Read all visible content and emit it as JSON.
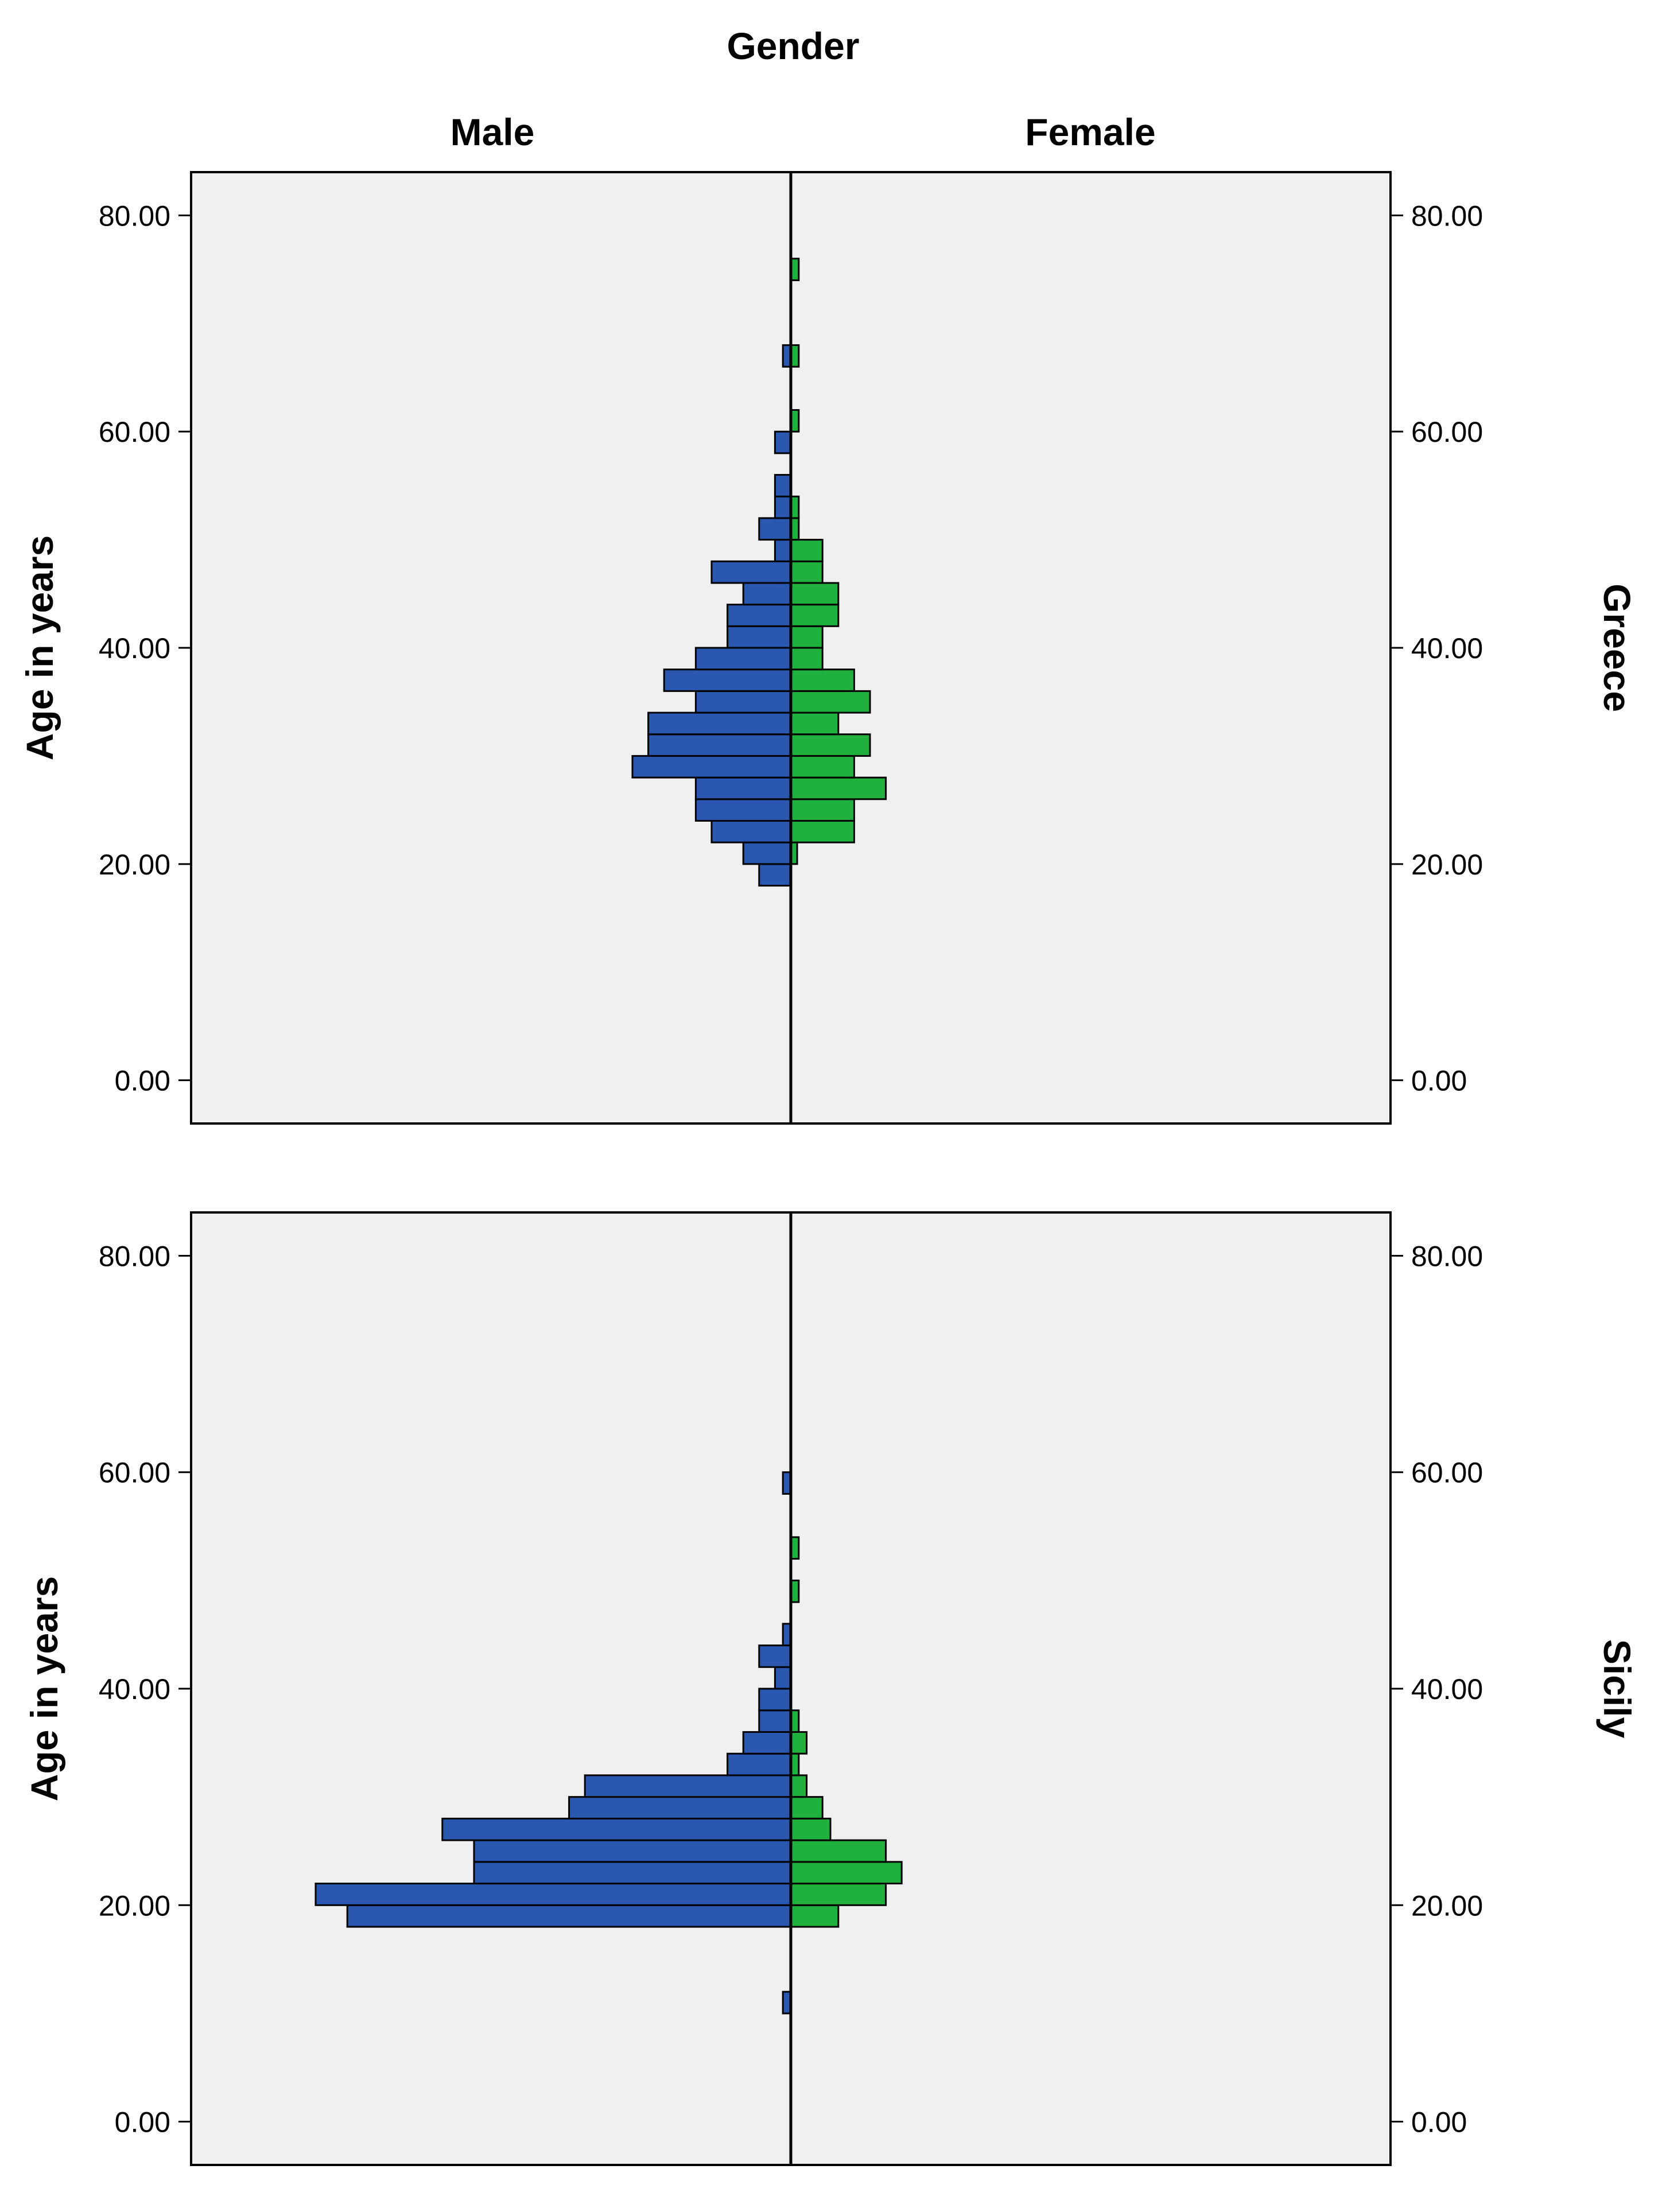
{
  "chart_data": {
    "type": "bar",
    "orientation": "horizontal",
    "layout": "population-pyramid",
    "column_header": "Gender",
    "column_labels": [
      "Male",
      "Female"
    ],
    "row_labels": [
      "Greece",
      "Sicily"
    ],
    "ylabel": "Age in years",
    "ylim": [
      -4,
      84
    ],
    "yticks": [
      "0.00",
      "20.00",
      "40.00",
      "60.00",
      "80.00"
    ],
    "bin_width": 2,
    "colors": {
      "Male": "#2a57b0",
      "Female": "#1fb03e",
      "plot_bg": "#f0f0f0"
    },
    "panels": [
      {
        "row_label": "Greece",
        "male": [
          [
            18,
            2
          ],
          [
            20,
            3
          ],
          [
            22,
            5
          ],
          [
            24,
            6
          ],
          [
            26,
            6
          ],
          [
            28,
            10
          ],
          [
            30,
            9
          ],
          [
            32,
            9
          ],
          [
            34,
            6
          ],
          [
            36,
            8
          ],
          [
            38,
            6
          ],
          [
            40,
            4
          ],
          [
            42,
            4
          ],
          [
            44,
            3
          ],
          [
            46,
            5
          ],
          [
            48,
            1
          ],
          [
            50,
            2
          ],
          [
            52,
            1
          ],
          [
            54,
            1
          ],
          [
            58,
            1
          ],
          [
            66,
            0.5
          ]
        ],
        "female": [
          [
            20,
            0.4
          ],
          [
            22,
            4
          ],
          [
            24,
            4
          ],
          [
            26,
            6
          ],
          [
            28,
            4
          ],
          [
            30,
            5
          ],
          [
            32,
            3
          ],
          [
            34,
            5
          ],
          [
            36,
            4
          ],
          [
            38,
            2
          ],
          [
            40,
            2
          ],
          [
            42,
            3
          ],
          [
            44,
            3
          ],
          [
            46,
            2
          ],
          [
            48,
            2
          ],
          [
            50,
            0.5
          ],
          [
            52,
            0.5
          ],
          [
            60,
            0.5
          ],
          [
            66,
            0.5
          ],
          [
            74,
            0.5
          ]
        ]
      },
      {
        "row_label": "Sicily",
        "male": [
          [
            10,
            0.5
          ],
          [
            18,
            28
          ],
          [
            20,
            30
          ],
          [
            22,
            20
          ],
          [
            24,
            20
          ],
          [
            26,
            22
          ],
          [
            28,
            14
          ],
          [
            30,
            13
          ],
          [
            32,
            4
          ],
          [
            34,
            3
          ],
          [
            36,
            2
          ],
          [
            38,
            2
          ],
          [
            40,
            1
          ],
          [
            42,
            2
          ],
          [
            44,
            0.5
          ],
          [
            58,
            0.5
          ]
        ],
        "female": [
          [
            18,
            3
          ],
          [
            20,
            6
          ],
          [
            22,
            7
          ],
          [
            24,
            6
          ],
          [
            26,
            2.5
          ],
          [
            28,
            2
          ],
          [
            30,
            1
          ],
          [
            32,
            0.5
          ],
          [
            34,
            1
          ],
          [
            36,
            0.5
          ],
          [
            48,
            0.5
          ],
          [
            52,
            0.5
          ]
        ]
      }
    ]
  }
}
